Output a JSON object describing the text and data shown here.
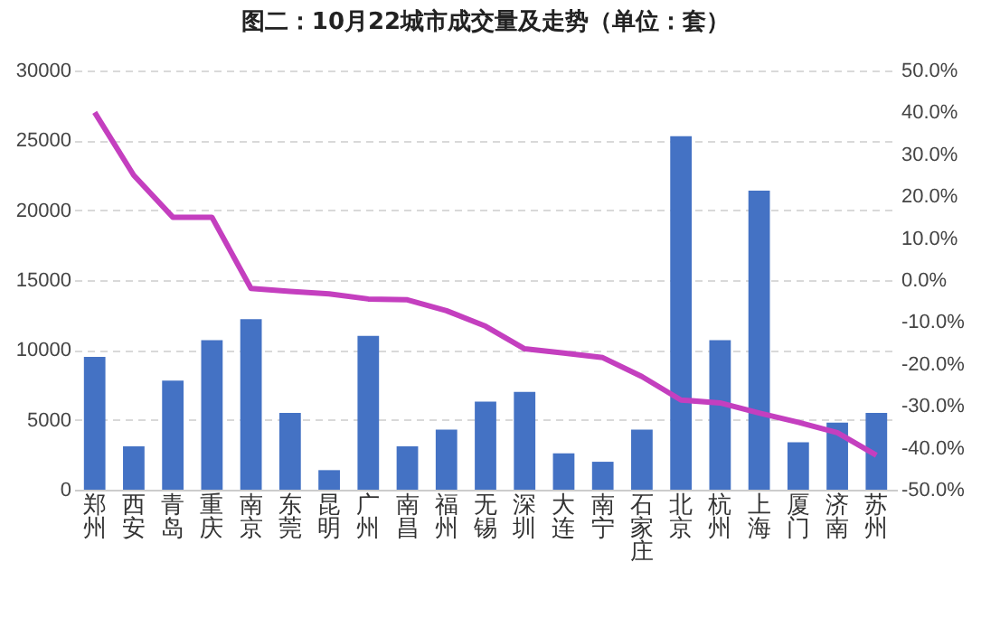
{
  "chart_data": {
    "type": "bar",
    "title": "图二：10月22城市成交量及走势（单位：套）",
    "categories": [
      "郑州",
      "西安",
      "青岛",
      "重庆",
      "南京",
      "东莞",
      "昆明",
      "广州",
      "南昌",
      "福州",
      "无锡",
      "深圳",
      "大连",
      "南宁",
      "石家庄",
      "北京",
      "杭州",
      "上海",
      "厦门",
      "济南",
      "苏州"
    ],
    "series": [
      {
        "color": "#4472c4",
        "values": [
          9500,
          3100,
          7800,
          10700,
          12200,
          5500,
          1400,
          11000,
          3100,
          4300,
          6300,
          7000,
          2600,
          2000,
          4300,
          25300,
          10700,
          21400,
          3400,
          4800,
          5500
        ]
      },
      {
        "type": "line",
        "axis": "y2",
        "color": "#c43fbf",
        "values": [
          40,
          25,
          15,
          15,
          -2,
          -2.7,
          -3.3,
          -4.5,
          -4.7,
          -7.3,
          -11,
          -16.4,
          -17.4,
          -18.5,
          -23,
          -28.6,
          -29.3,
          -31.7,
          -33.9,
          -36.4,
          -41.8
        ]
      }
    ],
    "ylim": [
      0,
      30000
    ],
    "yticks": [
      0,
      5000,
      10000,
      15000,
      20000,
      25000,
      30000
    ],
    "y2lim": [
      -50,
      50
    ],
    "y2ticks": [
      {
        "value": -50,
        "label": "-50.0%"
      },
      {
        "value": -40,
        "label": "-40.0%"
      },
      {
        "value": -30,
        "label": "-30.0%"
      },
      {
        "value": -20,
        "label": "-20.0%"
      },
      {
        "value": -10,
        "label": "-10.0%"
      },
      {
        "value": 0,
        "label": "0.0%"
      },
      {
        "value": 10,
        "label": "10.0%"
      },
      {
        "value": 20,
        "label": "20.0%"
      },
      {
        "value": 30,
        "label": "30.0%"
      },
      {
        "value": 40,
        "label": "40.0%"
      },
      {
        "value": 50,
        "label": "50.0%"
      }
    ],
    "grid": "y",
    "line_style": "solid",
    "marker": "none"
  }
}
